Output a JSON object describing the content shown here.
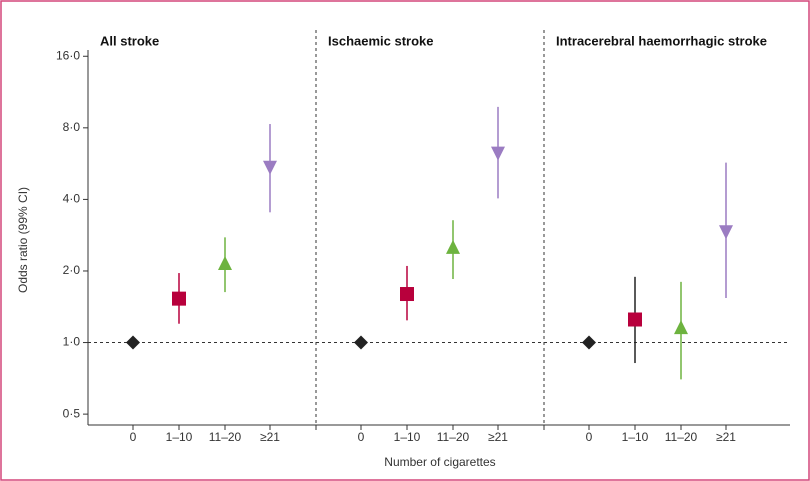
{
  "chart_data": {
    "type": "errorbar",
    "ylabel": "Odds ratio (99% CI)",
    "xlabel": "Number of cigarettes",
    "yscale": "log",
    "ylim": [
      0.45,
      17
    ],
    "yticks": [
      {
        "value": 0.5,
        "label": "0·5"
      },
      {
        "value": 1,
        "label": "1·0"
      },
      {
        "value": 2,
        "label": "2·0"
      },
      {
        "value": 4,
        "label": "4·0"
      },
      {
        "value": 8,
        "label": "8·0"
      },
      {
        "value": 16,
        "label": "16·0"
      }
    ],
    "hline": 1,
    "categories": [
      "0",
      "1–10",
      "11–20",
      "≥21"
    ],
    "markers": [
      "diamond",
      "square",
      "triangle-up",
      "triangle-down"
    ],
    "colors": [
      "#222222",
      "#b8003c",
      "#6db33f",
      "#9b7cc2"
    ],
    "panels": [
      {
        "title": "All stroke",
        "values": [
          1,
          1.53,
          2.14,
          5.49
        ],
        "lower": [
          null,
          1.2,
          1.63,
          3.53
        ],
        "upper": [
          null,
          1.96,
          2.77,
          8.3
        ],
        "ci_colors": [
          "#222222",
          "#b8003c",
          "#6db33f",
          "#9b7cc2"
        ]
      },
      {
        "title": "Ischaemic stroke",
        "values": [
          1,
          1.6,
          2.5,
          6.29
        ],
        "lower": [
          null,
          1.24,
          1.85,
          4.04
        ],
        "upper": [
          null,
          2.1,
          3.27,
          9.8
        ],
        "ci_colors": [
          "#222222",
          "#b8003c",
          "#6db33f",
          "#9b7cc2"
        ]
      },
      {
        "title": "Intracerebral haemorrhagic stroke",
        "values": [
          1,
          1.25,
          1.15,
          2.94
        ],
        "lower": [
          null,
          0.82,
          0.7,
          1.54
        ],
        "upper": [
          null,
          1.89,
          1.8,
          5.71
        ],
        "ci_colors": [
          "#222222",
          "#222222",
          "#6db33f",
          "#9b7cc2"
        ]
      }
    ]
  }
}
